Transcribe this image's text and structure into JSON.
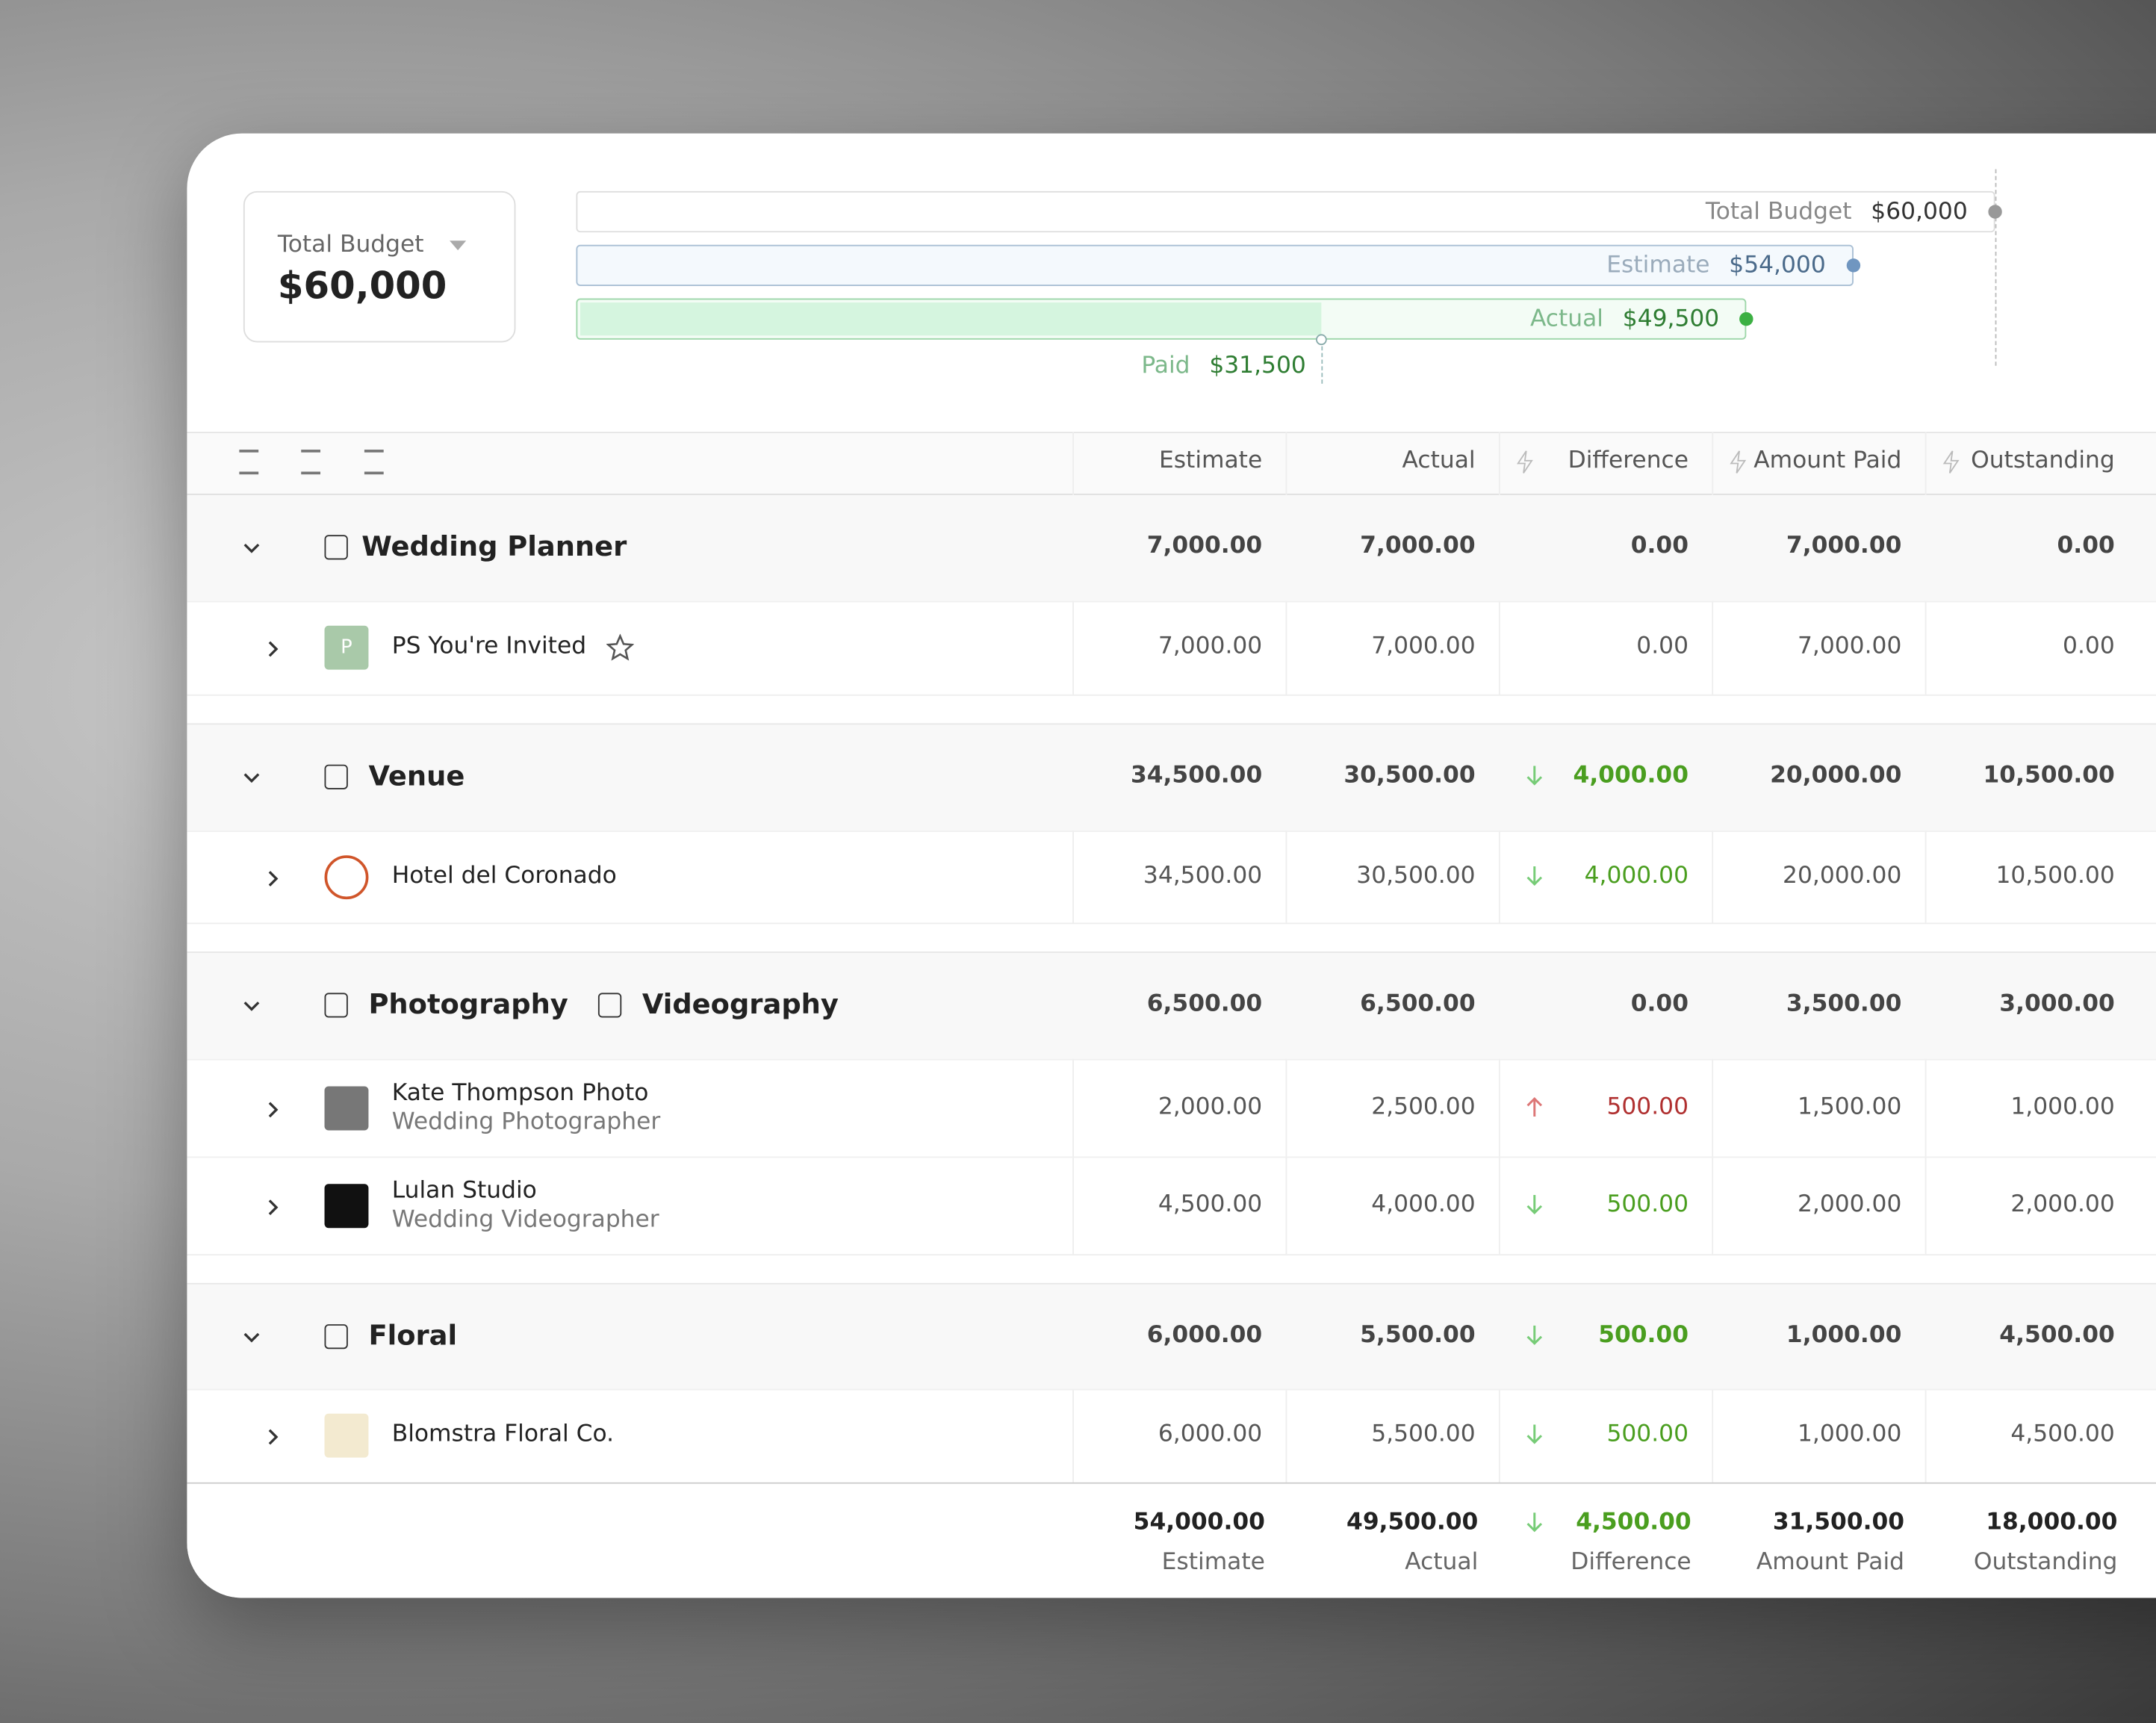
{
  "summary": {
    "label": "Total Budget",
    "value": "$60,000"
  },
  "budget_bars": [
    {
      "name": "Total Budget",
      "value": 60000,
      "value_label": "$60,000"
    },
    {
      "name": "Estimate",
      "value": 54000,
      "value_label": "$54,000"
    },
    {
      "name": "Actual",
      "value": 49500,
      "value_label": "$49,500"
    },
    {
      "name": "Paid",
      "value": 31500,
      "value_label": "$31,500"
    }
  ],
  "table": {
    "columns": [
      "Estimate",
      "Actual",
      "Difference",
      "Amount Paid",
      "Outstanding"
    ],
    "groups": [
      {
        "names": [
          "Wedding Planner"
        ],
        "values": [
          "7,000.00",
          "7,000.00",
          "0.00",
          "7,000.00",
          "0.00"
        ],
        "items": [
          {
            "name": "PS You're Invited",
            "avatar": "P",
            "values": [
              "7,000.00",
              "7,000.00",
              "0.00",
              "7,000.00",
              "0.00"
            ]
          }
        ]
      },
      {
        "names": [
          "Venue"
        ],
        "trend": "down",
        "values": [
          "34,500.00",
          "30,500.00",
          "4,000.00",
          "20,000.00",
          "10,500.00"
        ],
        "items": [
          {
            "name": "Hotel del Coronado",
            "trend": "down",
            "values": [
              "34,500.00",
              "30,500.00",
              "4,000.00",
              "20,000.00",
              "10,500.00"
            ]
          }
        ]
      },
      {
        "names": [
          "Photography",
          "Videography"
        ],
        "values": [
          "6,500.00",
          "6,500.00",
          "0.00",
          "3,500.00",
          "3,000.00"
        ],
        "items": [
          {
            "name": "Kate Thompson Photo",
            "subtitle": "Wedding Photographer",
            "trend": "up",
            "values": [
              "2,000.00",
              "2,500.00",
              "500.00",
              "1,500.00",
              "1,000.00"
            ]
          },
          {
            "name": "Lulan Studio",
            "subtitle": "Wedding Videographer",
            "trend": "down",
            "values": [
              "4,500.00",
              "4,000.00",
              "500.00",
              "2,000.00",
              "2,000.00"
            ]
          }
        ]
      },
      {
        "names": [
          "Floral"
        ],
        "trend": "down",
        "values": [
          "6,000.00",
          "5,500.00",
          "500.00",
          "1,000.00",
          "4,500.00"
        ],
        "items": [
          {
            "name": "Blomstra Floral Co.",
            "trend": "down",
            "values": [
              "6,000.00",
              "5,500.00",
              "500.00",
              "1,000.00",
              "4,500.00"
            ]
          }
        ]
      }
    ],
    "totals": {
      "trend": "down",
      "values": [
        "54,000.00",
        "49,500.00",
        "4,500.00",
        "31,500.00",
        "18,000.00"
      ]
    }
  }
}
